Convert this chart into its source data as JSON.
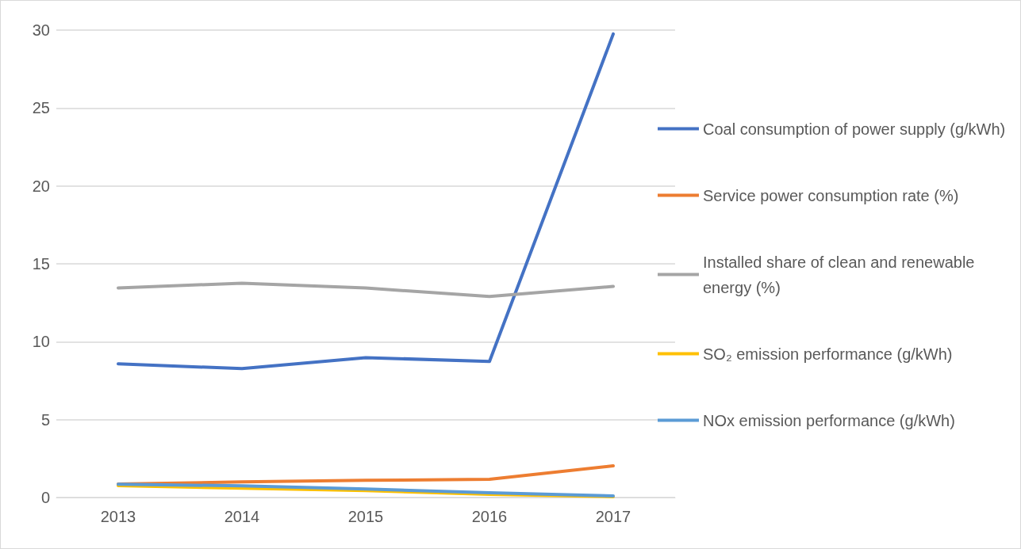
{
  "chart_data": {
    "type": "line",
    "categories": [
      "2013",
      "2014",
      "2015",
      "2016",
      "2017"
    ],
    "series": [
      {
        "name": "Coal consumption of power supply (g/kWh)",
        "color": "#4472c4",
        "values": [
          8.58,
          8.27,
          8.98,
          8.73,
          29.75
        ]
      },
      {
        "name": "Service power consumption rate (%)",
        "color": "#ed7d31",
        "values": [
          0.86,
          1.0,
          1.1,
          1.17,
          2.03
        ]
      },
      {
        "name": "Installed share of clean and renewable energy (%)",
        "color": "#a5a5a5",
        "values": [
          13.45,
          13.76,
          13.45,
          12.9,
          13.55
        ]
      },
      {
        "name": "SO₂ emission performance (g/kWh)",
        "color": "#ffc000",
        "values": [
          0.76,
          0.6,
          0.45,
          0.2,
          0.05
        ]
      },
      {
        "name": "NOx emission performance (g/kWh)",
        "color": "#5b9bd5",
        "values": [
          0.85,
          0.75,
          0.55,
          0.3,
          0.1
        ]
      }
    ],
    "ylim": [
      0,
      30
    ],
    "yticks": [
      0,
      5,
      10,
      15,
      20,
      25,
      30
    ],
    "grid": "y",
    "legend": "right",
    "marker": "none",
    "line_style": "solid"
  }
}
